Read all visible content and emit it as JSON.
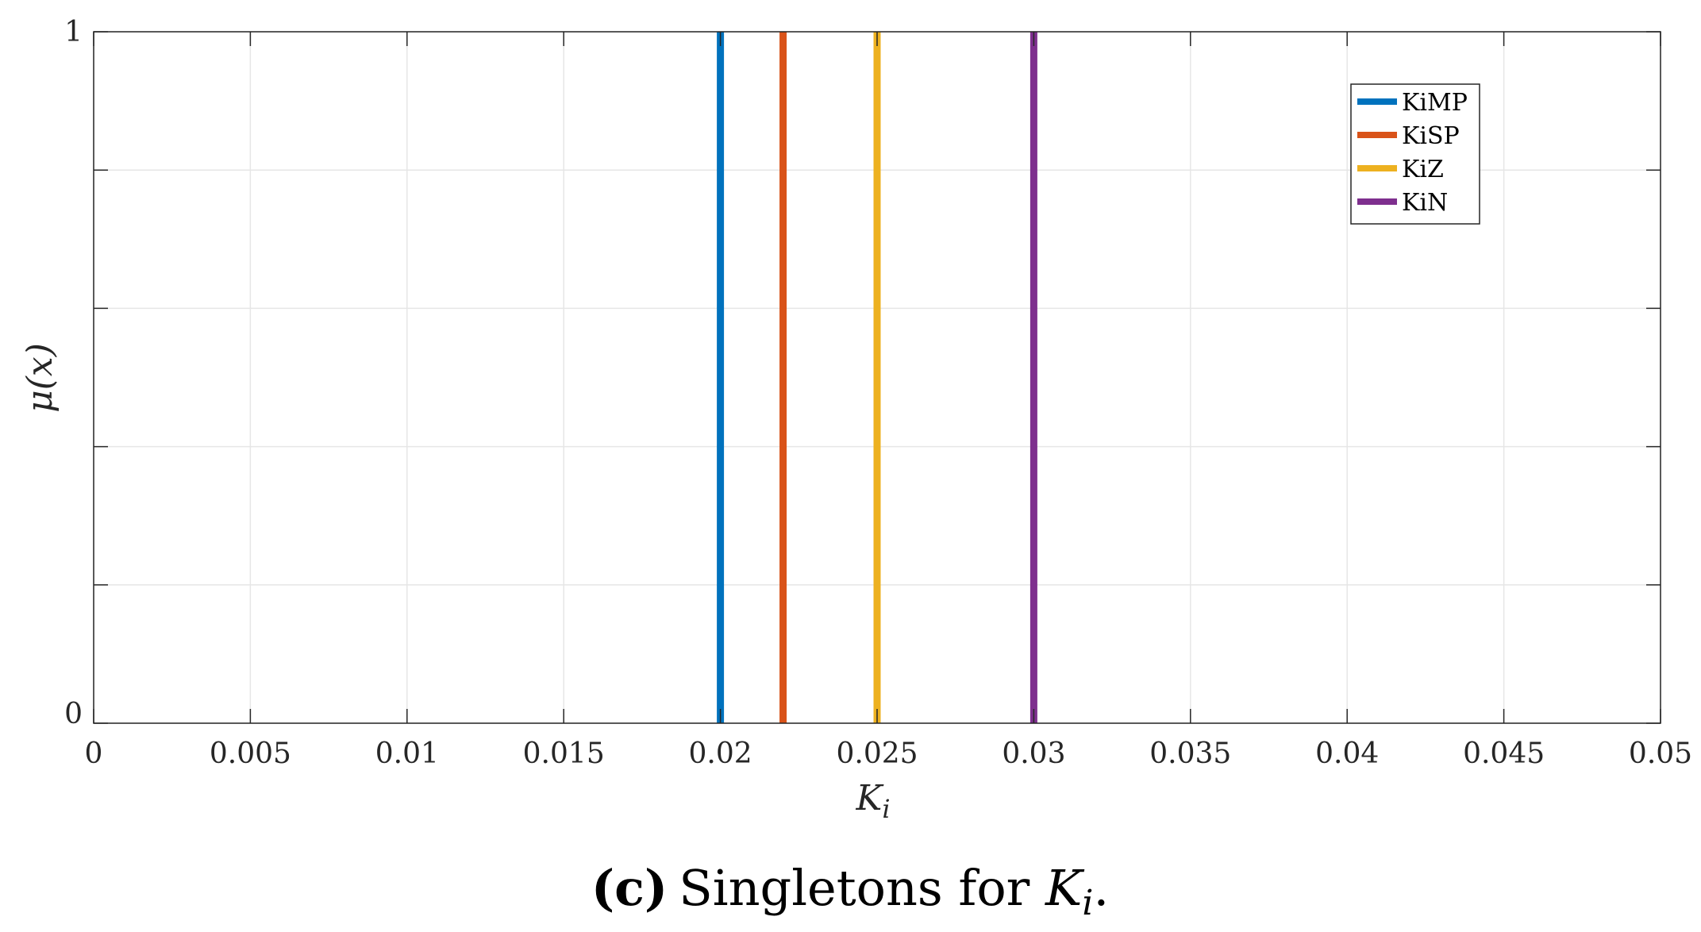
{
  "chart_data": {
    "type": "line",
    "xlabel": "K",
    "xlabel_sub": "i",
    "ylabel": "μ(x)",
    "xlim": [
      0,
      0.05
    ],
    "ylim": [
      0,
      1
    ],
    "xticks": [
      0,
      0.005,
      0.01,
      0.015,
      0.02,
      0.025,
      0.03,
      0.035,
      0.04,
      0.045,
      0.05
    ],
    "xtick_labels": [
      "0",
      "0.005",
      "0.01",
      "0.015",
      "0.02",
      "0.025",
      "0.03",
      "0.035",
      "0.04",
      "0.045",
      "0.05"
    ],
    "yticks": [
      0,
      0.2,
      0.4,
      0.6,
      0.8,
      1
    ],
    "ytick_labels": [
      "0",
      "",
      "",
      "",
      "",
      "1"
    ],
    "grid": true,
    "legend_position": "top-right",
    "series": [
      {
        "name": "KiMP",
        "x": [
          0.02,
          0.02
        ],
        "y": [
          0,
          1
        ],
        "color": "#0072BD"
      },
      {
        "name": "KiSP",
        "x": [
          0.022,
          0.022
        ],
        "y": [
          0,
          1
        ],
        "color": "#D95319"
      },
      {
        "name": "KiZ",
        "x": [
          0.025,
          0.025
        ],
        "y": [
          0,
          1
        ],
        "color": "#EDB120"
      },
      {
        "name": "KiN",
        "x": [
          0.03,
          0.03
        ],
        "y": [
          0,
          1
        ],
        "color": "#7E2F8E"
      }
    ]
  },
  "caption": {
    "label": "(c)",
    "text": "Singletons for ",
    "symbol": "K",
    "symbol_sub": "i",
    "end": "."
  }
}
